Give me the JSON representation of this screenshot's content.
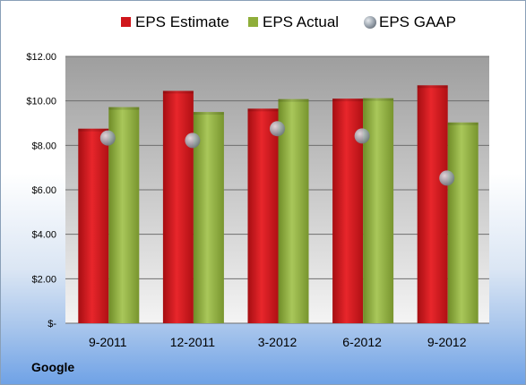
{
  "footer": {
    "company": "Google"
  },
  "colors": {
    "estimate": "#d0161b",
    "actual": "#8fae3a",
    "gaap": "#a9b2bc",
    "plot_top": "#9e9e9e",
    "plot_bottom": "#f4f4f4"
  },
  "chart_data": {
    "type": "bar",
    "title": "",
    "xlabel": "",
    "ylabel": "",
    "categories": [
      "9-2011",
      "12-2011",
      "3-2012",
      "6-2012",
      "9-2012"
    ],
    "series": [
      {
        "name": "EPS Estimate",
        "kind": "bar",
        "values": [
          8.75,
          10.45,
          9.65,
          10.1,
          10.7
        ]
      },
      {
        "name": "EPS Actual",
        "kind": "bar",
        "values": [
          9.72,
          9.5,
          10.08,
          10.12,
          9.03
        ]
      },
      {
        "name": "EPS GAAP",
        "kind": "marker",
        "values": [
          8.33,
          8.22,
          8.75,
          8.42,
          6.53
        ]
      }
    ],
    "ylim": [
      0,
      12
    ],
    "yticks": [
      0,
      2,
      4,
      6,
      8,
      10,
      12
    ],
    "ytick_labels": [
      "$-",
      "$2.00",
      "$4.00",
      "$6.00",
      "$8.00",
      "$10.00",
      "$12.00"
    ],
    "grid": true,
    "legend_position": "top"
  }
}
